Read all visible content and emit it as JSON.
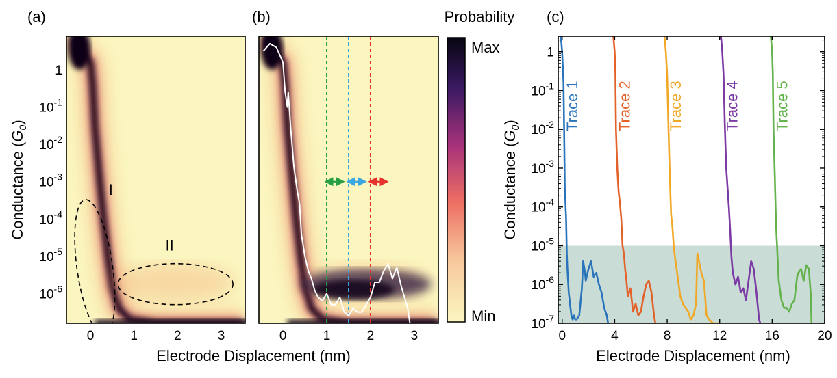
{
  "panel_labels": [
    "(a)",
    "(b)",
    "(c)"
  ],
  "ylabel_prefix": "Conductance (",
  "ylabel_var": "G",
  "ylabel_sub": "0",
  "ylabel_suffix": ")",
  "xlabel_ab": "Electrode Displacement (nm)",
  "xlabel_c": "Electrode Displacement (nm)",
  "colorbar": {
    "title": "Probability",
    "max_label": "Max",
    "min_label": "Min"
  },
  "colors": {
    "heat_bg": "#fbf6c0",
    "heat_dark": "#0a0612",
    "shade": "#c9dcd5"
  },
  "chart_data": [
    {
      "panel": "(a)",
      "type": "heatmap",
      "xlabel": "Electrode Displacement (nm)",
      "ylabel": "Conductance (G0)",
      "xlim": [
        -0.55,
        3.55
      ],
      "ylim_log10": [
        -6.8,
        0.9
      ],
      "yscale": "log",
      "xticks": [
        "0",
        "1",
        "2",
        "3"
      ],
      "yticks": [
        "1",
        "10-1",
        "10-2",
        "10-3",
        "10-4",
        "10-5",
        "10-6"
      ],
      "annotations": [
        {
          "text": "I",
          "region": "dashed ellipse around the steep conductance decay near 0-0.5 nm, 10^-7 to 10^-3.5 G0"
        },
        {
          "text": "II",
          "region": "dashed ellipse centred near 2 nm, 10^-5.7 G0"
        }
      ]
    },
    {
      "panel": "(b)",
      "type": "heatmap",
      "xlabel": "Electrode Displacement (nm)",
      "ylabel": "",
      "xlim": [
        -0.55,
        3.55
      ],
      "ylim_log10": [
        -6.8,
        0.9
      ],
      "yscale": "log",
      "xticks": [
        "0",
        "1",
        "2",
        "3"
      ],
      "yticks": [],
      "dashed_lines": [
        {
          "x": 1.0,
          "color": "#27a045"
        },
        {
          "x": 1.5,
          "color": "#3aa7e0"
        },
        {
          "x": 2.0,
          "color": "#e6322a"
        }
      ],
      "arrows_at_log10_conductance": -3,
      "overlay_trace": {
        "color": "#ffffff",
        "x": [
          -0.45,
          -0.3,
          -0.15,
          0.0,
          0.05,
          0.1,
          0.12,
          0.18,
          0.25,
          0.32,
          0.38,
          0.42,
          0.5,
          0.58,
          0.65,
          0.72,
          0.8,
          0.9,
          1.0,
          1.1,
          1.2,
          1.3,
          1.4,
          1.5,
          1.6,
          1.7,
          1.8,
          1.9,
          2.0,
          2.1,
          2.2,
          2.3,
          2.4,
          2.5,
          2.6,
          2.7,
          2.8,
          2.85,
          2.9
        ],
        "log10_y": [
          0.5,
          0.7,
          0.6,
          0.2,
          -0.6,
          -1.0,
          -0.6,
          -1.6,
          -2.6,
          -3.2,
          -3.6,
          -4.4,
          -5.0,
          -5.4,
          -5.6,
          -5.9,
          -6.1,
          -6.2,
          -6.0,
          -6.3,
          -6.3,
          -6.1,
          -6.5,
          -6.6,
          -6.4,
          -6.5,
          -6.5,
          -6.3,
          -6.1,
          -5.7,
          -5.7,
          -5.4,
          -5.2,
          -5.6,
          -5.3,
          -5.8,
          -6.2,
          -6.4,
          -6.8
        ]
      }
    },
    {
      "panel": "(c)",
      "type": "line",
      "xlabel": "Electrode Displacement (nm)",
      "ylabel": "Conductance (G0)",
      "xlim": [
        -0.3,
        20
      ],
      "ylim_log10": [
        -7,
        0.4
      ],
      "yscale": "log",
      "xticks": [
        "0",
        "4",
        "8",
        "12",
        "16",
        "20"
      ],
      "yticks": [
        "1",
        "10-1",
        "10-2",
        "10-3",
        "10-4",
        "10-5",
        "10-6",
        "10-7"
      ],
      "shaded_region_log10": [
        -7,
        -5
      ],
      "series": [
        {
          "name": "Trace 1",
          "color": "#2a74bb",
          "x": [
            -0.1,
            0.0,
            0.1,
            0.15,
            0.2,
            0.3,
            0.35,
            0.4,
            0.5,
            0.6,
            0.7,
            0.8,
            0.9,
            1.0,
            1.1,
            1.3,
            1.5,
            1.6,
            1.7,
            1.8,
            2.0,
            2.2,
            2.4,
            2.6,
            2.8,
            3.0,
            3.2,
            3.4,
            3.5
          ],
          "log10_y": [
            0.4,
            0.0,
            -0.8,
            -2.0,
            -3.5,
            -4.3,
            -5.2,
            -5.6,
            -6.2,
            -6.5,
            -6.8,
            -6.9,
            -6.8,
            -6.9,
            -6.9,
            -6.8,
            -6.1,
            -5.4,
            -5.6,
            -5.9,
            -5.6,
            -5.4,
            -5.8,
            -5.7,
            -6.0,
            -6.2,
            -6.6,
            -6.8,
            -7.0
          ]
        },
        {
          "name": "Trace 2",
          "color": "#e3622a",
          "x": [
            3.9,
            4.0,
            4.05,
            4.1,
            4.2,
            4.3,
            4.4,
            4.5,
            4.6,
            4.7,
            4.8,
            4.9,
            5.0,
            5.2,
            5.4,
            5.6,
            5.8,
            6.0,
            6.2,
            6.4,
            6.6,
            6.8,
            7.0,
            7.1,
            7.2
          ],
          "log10_y": [
            0.4,
            0.0,
            -0.5,
            -2.0,
            -3.0,
            -3.6,
            -3.9,
            -4.3,
            -5.0,
            -5.2,
            -5.6,
            -5.9,
            -6.3,
            -6.1,
            -6.7,
            -6.5,
            -6.8,
            -6.7,
            -6.3,
            -6.0,
            -5.9,
            -6.2,
            -6.8,
            -7.0,
            -7.0
          ]
        },
        {
          "name": "Trace 3",
          "color": "#f0a826",
          "x": [
            7.8,
            7.9,
            8.0,
            8.1,
            8.2,
            8.3,
            8.4,
            8.5,
            8.6,
            8.8,
            9.0,
            9.2,
            9.4,
            9.6,
            9.8,
            10.0,
            10.2,
            10.3,
            10.6,
            10.8,
            11.0,
            11.2,
            11.5,
            11.9
          ],
          "log10_y": [
            0.4,
            0.0,
            -0.6,
            -2.0,
            -3.2,
            -4.2,
            -4.5,
            -5.0,
            -5.3,
            -5.8,
            -6.3,
            -6.5,
            -6.6,
            -6.7,
            -6.9,
            -6.8,
            -6.5,
            -5.2,
            -5.7,
            -5.9,
            -6.8,
            -6.9,
            -7.0,
            -7.0
          ]
        },
        {
          "name": "Trace 4",
          "color": "#7c3aa4",
          "x": [
            12.1,
            12.2,
            12.3,
            12.4,
            12.5,
            12.6,
            12.7,
            12.8,
            12.9,
            13.0,
            13.2,
            13.4,
            13.6,
            13.8,
            14.0,
            14.2,
            14.4,
            14.6,
            14.8,
            15.0,
            15.1
          ],
          "log10_y": [
            0.4,
            0.0,
            -0.6,
            -2.0,
            -3.0,
            -3.5,
            -4.0,
            -4.6,
            -5.3,
            -5.7,
            -6.0,
            -5.8,
            -6.2,
            -6.1,
            -6.4,
            -5.9,
            -5.4,
            -5.6,
            -6.2,
            -6.9,
            -7.0
          ]
        },
        {
          "name": "Trace 5",
          "color": "#63b24c",
          "x": [
            15.9,
            16.0,
            16.05,
            16.1,
            16.2,
            16.3,
            16.4,
            16.5,
            16.7,
            16.9,
            17.1,
            17.3,
            17.5,
            17.7,
            17.9,
            18.0,
            18.2,
            18.4,
            18.6,
            18.8,
            18.95,
            19.0
          ],
          "log10_y": [
            0.4,
            0.0,
            -0.6,
            -2.0,
            -3.2,
            -4.5,
            -5.2,
            -5.9,
            -6.4,
            -6.6,
            -6.6,
            -6.7,
            -6.5,
            -6.4,
            -5.8,
            -5.7,
            -5.6,
            -5.9,
            -5.5,
            -5.6,
            -6.3,
            -7.0
          ]
        }
      ]
    }
  ]
}
